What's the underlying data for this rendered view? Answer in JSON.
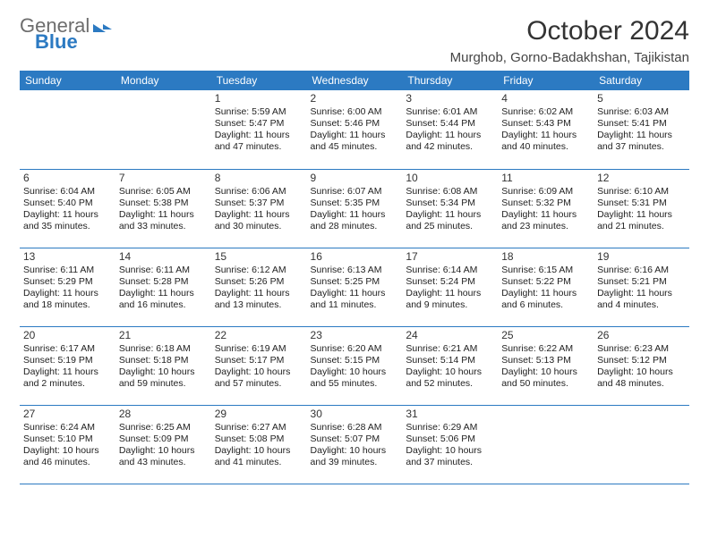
{
  "brand": {
    "part1": "General",
    "part2": "Blue"
  },
  "title": "October 2024",
  "location": "Murghob, Gorno-Badakhshan, Tajikistan",
  "header_bg": "#2c7ac2",
  "header_fg": "#ffffff",
  "border_color": "#2c7ac2",
  "weekdays": [
    "Sunday",
    "Monday",
    "Tuesday",
    "Wednesday",
    "Thursday",
    "Friday",
    "Saturday"
  ],
  "blank_leading": 2,
  "days": [
    {
      "n": 1,
      "sunrise": "5:59 AM",
      "sunset": "5:47 PM",
      "daylight": "11 hours and 47 minutes."
    },
    {
      "n": 2,
      "sunrise": "6:00 AM",
      "sunset": "5:46 PM",
      "daylight": "11 hours and 45 minutes."
    },
    {
      "n": 3,
      "sunrise": "6:01 AM",
      "sunset": "5:44 PM",
      "daylight": "11 hours and 42 minutes."
    },
    {
      "n": 4,
      "sunrise": "6:02 AM",
      "sunset": "5:43 PM",
      "daylight": "11 hours and 40 minutes."
    },
    {
      "n": 5,
      "sunrise": "6:03 AM",
      "sunset": "5:41 PM",
      "daylight": "11 hours and 37 minutes."
    },
    {
      "n": 6,
      "sunrise": "6:04 AM",
      "sunset": "5:40 PM",
      "daylight": "11 hours and 35 minutes."
    },
    {
      "n": 7,
      "sunrise": "6:05 AM",
      "sunset": "5:38 PM",
      "daylight": "11 hours and 33 minutes."
    },
    {
      "n": 8,
      "sunrise": "6:06 AM",
      "sunset": "5:37 PM",
      "daylight": "11 hours and 30 minutes."
    },
    {
      "n": 9,
      "sunrise": "6:07 AM",
      "sunset": "5:35 PM",
      "daylight": "11 hours and 28 minutes."
    },
    {
      "n": 10,
      "sunrise": "6:08 AM",
      "sunset": "5:34 PM",
      "daylight": "11 hours and 25 minutes."
    },
    {
      "n": 11,
      "sunrise": "6:09 AM",
      "sunset": "5:32 PM",
      "daylight": "11 hours and 23 minutes."
    },
    {
      "n": 12,
      "sunrise": "6:10 AM",
      "sunset": "5:31 PM",
      "daylight": "11 hours and 21 minutes."
    },
    {
      "n": 13,
      "sunrise": "6:11 AM",
      "sunset": "5:29 PM",
      "daylight": "11 hours and 18 minutes."
    },
    {
      "n": 14,
      "sunrise": "6:11 AM",
      "sunset": "5:28 PM",
      "daylight": "11 hours and 16 minutes."
    },
    {
      "n": 15,
      "sunrise": "6:12 AM",
      "sunset": "5:26 PM",
      "daylight": "11 hours and 13 minutes."
    },
    {
      "n": 16,
      "sunrise": "6:13 AM",
      "sunset": "5:25 PM",
      "daylight": "11 hours and 11 minutes."
    },
    {
      "n": 17,
      "sunrise": "6:14 AM",
      "sunset": "5:24 PM",
      "daylight": "11 hours and 9 minutes."
    },
    {
      "n": 18,
      "sunrise": "6:15 AM",
      "sunset": "5:22 PM",
      "daylight": "11 hours and 6 minutes."
    },
    {
      "n": 19,
      "sunrise": "6:16 AM",
      "sunset": "5:21 PM",
      "daylight": "11 hours and 4 minutes."
    },
    {
      "n": 20,
      "sunrise": "6:17 AM",
      "sunset": "5:19 PM",
      "daylight": "11 hours and 2 minutes."
    },
    {
      "n": 21,
      "sunrise": "6:18 AM",
      "sunset": "5:18 PM",
      "daylight": "10 hours and 59 minutes."
    },
    {
      "n": 22,
      "sunrise": "6:19 AM",
      "sunset": "5:17 PM",
      "daylight": "10 hours and 57 minutes."
    },
    {
      "n": 23,
      "sunrise": "6:20 AM",
      "sunset": "5:15 PM",
      "daylight": "10 hours and 55 minutes."
    },
    {
      "n": 24,
      "sunrise": "6:21 AM",
      "sunset": "5:14 PM",
      "daylight": "10 hours and 52 minutes."
    },
    {
      "n": 25,
      "sunrise": "6:22 AM",
      "sunset": "5:13 PM",
      "daylight": "10 hours and 50 minutes."
    },
    {
      "n": 26,
      "sunrise": "6:23 AM",
      "sunset": "5:12 PM",
      "daylight": "10 hours and 48 minutes."
    },
    {
      "n": 27,
      "sunrise": "6:24 AM",
      "sunset": "5:10 PM",
      "daylight": "10 hours and 46 minutes."
    },
    {
      "n": 28,
      "sunrise": "6:25 AM",
      "sunset": "5:09 PM",
      "daylight": "10 hours and 43 minutes."
    },
    {
      "n": 29,
      "sunrise": "6:27 AM",
      "sunset": "5:08 PM",
      "daylight": "10 hours and 41 minutes."
    },
    {
      "n": 30,
      "sunrise": "6:28 AM",
      "sunset": "5:07 PM",
      "daylight": "10 hours and 39 minutes."
    },
    {
      "n": 31,
      "sunrise": "6:29 AM",
      "sunset": "5:06 PM",
      "daylight": "10 hours and 37 minutes."
    }
  ],
  "labels": {
    "sunrise": "Sunrise: ",
    "sunset": "Sunset: ",
    "daylight": "Daylight: "
  }
}
